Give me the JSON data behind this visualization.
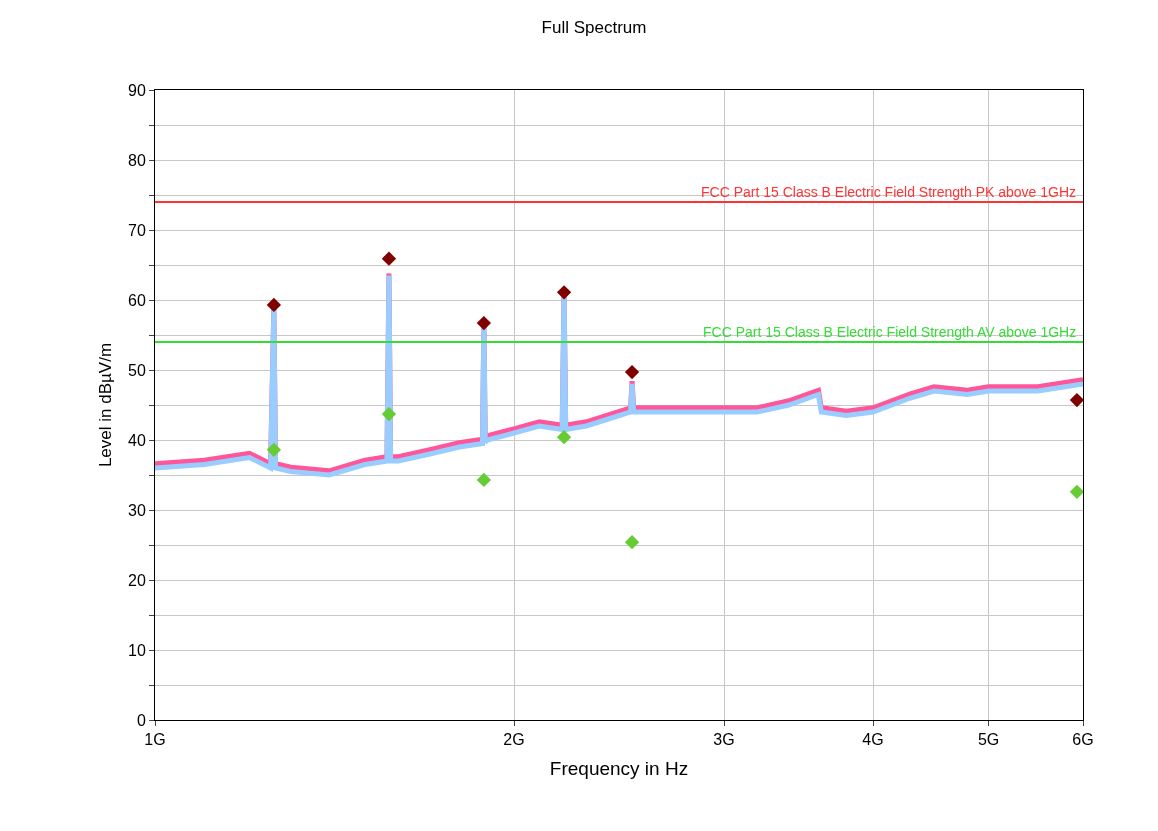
{
  "chart_data": {
    "type": "line",
    "title": "Full Spectrum",
    "xlabel": "Frequency in Hz",
    "ylabel": "Level in dBµV/m",
    "log": "x",
    "xlim": [
      1,
      6
    ],
    "xticks": [
      {
        "value": 1,
        "label": "1G"
      },
      {
        "value": 2,
        "label": "2G"
      },
      {
        "value": 3,
        "label": "3G"
      },
      {
        "value": 4,
        "label": "4G"
      },
      {
        "value": 5,
        "label": "5G"
      },
      {
        "value": 6,
        "label": "6G"
      }
    ],
    "ylim": [
      0,
      90
    ],
    "yticks": [
      0,
      {
        "value": 5,
        "label": null
      },
      10,
      {
        "value": 15,
        "label": null
      },
      20,
      {
        "value": 25,
        "label": null
      },
      30,
      {
        "value": 35,
        "label": null
      },
      40,
      {
        "value": 45,
        "label": null
      },
      50,
      {
        "value": 55,
        "label": null
      },
      60,
      {
        "value": 65,
        "label": null
      },
      70,
      {
        "value": 75,
        "label": null
      },
      80,
      {
        "value": 85,
        "label": null
      },
      90
    ],
    "grid": true,
    "ref_lines": [
      {
        "axis": "y",
        "value": 74,
        "label": "FCC Part 15 Class B Electric Field Strength PK above 1GHz",
        "color": "#ff3333"
      },
      {
        "axis": "y",
        "value": 54,
        "label": "FCC Part 15 Class B Electric Field Strength AV above 1GHz",
        "color": "#33dd33"
      }
    ],
    "series": [
      {
        "color": "#ff5599",
        "marker": "none",
        "x": [
          1,
          1.1,
          1.2,
          1.25,
          1.258,
          1.262,
          1.3,
          1.4,
          1.5,
          1.565,
          1.571,
          1.576,
          1.6,
          1.7,
          1.8,
          1.882,
          1.887,
          1.892,
          1.9,
          2,
          2.1,
          2.195,
          2.203,
          2.21,
          2.3,
          2.4,
          2.505,
          2.512,
          2.52,
          2.6,
          2.8,
          3,
          3.2,
          3.4,
          3.6,
          3.62,
          3.8,
          4,
          4.3,
          4.5,
          4.8,
          5,
          5.5,
          6
        ],
        "values": [
          36.6,
          37.1,
          38.1,
          36.6,
          59.2,
          36.6,
          36.1,
          35.6,
          37.1,
          37.6,
          63.8,
          37.6,
          37.6,
          38.6,
          39.6,
          40.1,
          56.7,
          40.3,
          40.6,
          41.6,
          42.6,
          42.1,
          61.1,
          42.1,
          42.6,
          43.6,
          44.6,
          48.4,
          44.6,
          44.6,
          44.6,
          44.6,
          44.6,
          45.6,
          47.1,
          44.6,
          44.1,
          44.6,
          46.6,
          47.6,
          47.1,
          47.6,
          47.6,
          48.6
        ]
      },
      {
        "color": "#99ccff",
        "marker": "none",
        "x": [
          1,
          1.1,
          1.2,
          1.25,
          1.258,
          1.262,
          1.3,
          1.4,
          1.5,
          1.565,
          1.571,
          1.576,
          1.6,
          1.7,
          1.8,
          1.882,
          1.887,
          1.892,
          1.9,
          2,
          2.1,
          2.195,
          2.203,
          2.21,
          2.3,
          2.4,
          2.505,
          2.512,
          2.52,
          2.6,
          2.8,
          3,
          3.2,
          3.4,
          3.6,
          3.62,
          3.8,
          4,
          4.3,
          4.5,
          4.8,
          5,
          5.5,
          6
        ],
        "values": [
          36,
          36.5,
          37.5,
          36,
          59,
          36,
          35.5,
          35,
          36.5,
          37,
          63.5,
          37,
          37,
          38,
          39,
          39.5,
          56.5,
          39.7,
          40,
          41,
          42,
          41.5,
          61,
          41.5,
          42,
          43,
          44,
          48,
          44,
          44,
          44,
          44,
          44,
          45,
          46.5,
          44,
          43.5,
          44,
          46,
          47,
          46.5,
          47,
          47,
          48
        ]
      },
      {
        "type": "scatter",
        "color": "#66cc33",
        "marker": "diamond",
        "x": [
          1.258,
          1.571,
          1.887,
          2.203,
          2.512,
          5.93
        ],
        "values": [
          38.6,
          43.7,
          34.3,
          40.4,
          25.4,
          32.6
        ]
      },
      {
        "type": "scatter",
        "color": "#800000",
        "marker": "diamond",
        "x": [
          1.258,
          1.571,
          1.887,
          2.203,
          2.512,
          5.93
        ],
        "values": [
          59.3,
          65.9,
          56.7,
          61.1,
          49.7,
          45.7
        ]
      }
    ]
  }
}
